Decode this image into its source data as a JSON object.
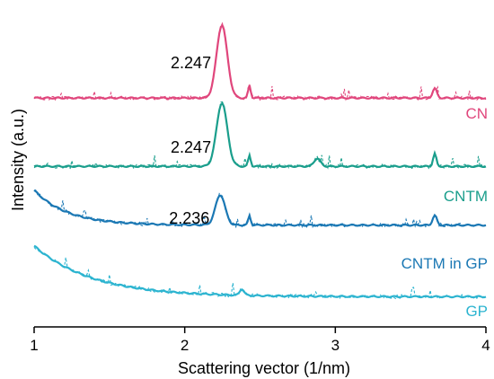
{
  "chart_data": {
    "type": "line",
    "xlabel": "Scattering vector (1/nm)",
    "ylabel": "Intensity (a.u.)",
    "xlim": [
      1,
      4
    ],
    "x_ticks": [
      1,
      2,
      3,
      4
    ],
    "x_tick_labels": [
      "1",
      "2",
      "3",
      "4"
    ],
    "y_ticks_shown": false,
    "grid": false,
    "legend": "series labels printed at right end of each curve",
    "series": [
      {
        "name": "CN",
        "color": "#e0467c",
        "baseline": 0.72,
        "peaks": [
          {
            "x": 2.247,
            "height": 0.23,
            "width": 0.05
          },
          {
            "x": 2.43,
            "height": 0.04,
            "width": 0.012
          },
          {
            "x": 3.66,
            "height": 0.03,
            "width": 0.02
          }
        ],
        "annotation": "2.247"
      },
      {
        "name": "CNTM",
        "color": "#1a9e8c",
        "baseline": 0.505,
        "peaks": [
          {
            "x": 2.247,
            "height": 0.2,
            "width": 0.05
          },
          {
            "x": 2.43,
            "height": 0.035,
            "width": 0.012
          },
          {
            "x": 2.88,
            "height": 0.025,
            "width": 0.03
          },
          {
            "x": 3.66,
            "height": 0.04,
            "width": 0.015
          }
        ],
        "annotation": "2.247"
      },
      {
        "name": "CNTM in GP",
        "color": "#1b78b4",
        "baseline": 0.32,
        "peaks": [
          {
            "x": 2.236,
            "height": 0.095,
            "width": 0.045
          },
          {
            "x": 2.43,
            "height": 0.03,
            "width": 0.012
          },
          {
            "x": 3.66,
            "height": 0.03,
            "width": 0.02
          }
        ],
        "annotation": "2.236"
      },
      {
        "name": "GP",
        "color": "#2cb4d0",
        "baseline": 0.095,
        "peaks": [
          {
            "x": 2.38,
            "height": 0.02,
            "width": 0.02
          }
        ],
        "annotation": ""
      }
    ]
  }
}
